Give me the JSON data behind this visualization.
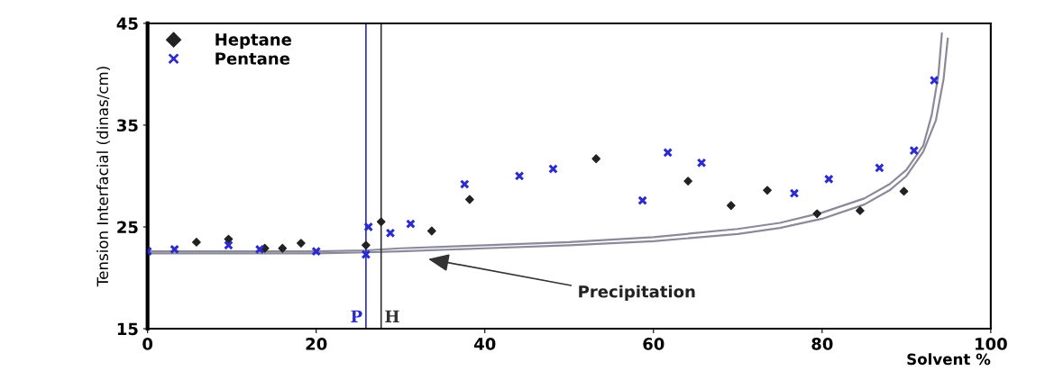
{
  "chart_data": {
    "type": "scatter",
    "xlabel": "Solvent %",
    "ylabel": "Tension Interfacial (dinas/cm)",
    "xlim": [
      0,
      100
    ],
    "ylim": [
      15,
      45
    ],
    "xticks": [
      0,
      20,
      40,
      60,
      80,
      100
    ],
    "yticks": [
      15,
      25,
      35,
      45
    ],
    "grid": false,
    "legend": "top left",
    "series": [
      {
        "name": "Heptane",
        "color": "#222222",
        "marker": "diamond",
        "x": [
          5.8,
          9.6,
          13.9,
          16,
          18.2,
          25.9,
          27.7,
          33.7,
          38.2,
          53.2,
          64.1,
          69.2,
          73.5,
          79.4,
          84.5,
          89.7
        ],
        "values": [
          23.5,
          23.8,
          22.9,
          22.9,
          23.4,
          23.2,
          25.5,
          24.6,
          27.7,
          31.7,
          29.5,
          27.1,
          28.6,
          26.3,
          26.6,
          28.5
        ]
      },
      {
        "name": "Pentane",
        "color": "#2b2bd0",
        "marker": "cross",
        "x": [
          0,
          3.2,
          9.6,
          13.3,
          20,
          25.9,
          26.2,
          28.8,
          31.2,
          37.6,
          44.1,
          48.1,
          58.7,
          61.7,
          65.7,
          76.7,
          80.8,
          86.8,
          90.9,
          93.3
        ],
        "values": [
          22.6,
          22.8,
          23.2,
          22.8,
          22.6,
          22.3,
          25,
          24.4,
          25.3,
          29.2,
          30,
          30.7,
          27.6,
          32.3,
          31.3,
          28.3,
          29.7,
          30.8,
          32.5,
          39.4
        ]
      },
      {
        "type": "line",
        "color": "#8a8a9a",
        "x": [
          0,
          20,
          26,
          30,
          40,
          50,
          60,
          70,
          75,
          80,
          85,
          88,
          90,
          92,
          93,
          93.8,
          94.2
        ],
        "values": [
          22.6,
          22.6,
          22.7,
          22.9,
          23.2,
          23.5,
          24,
          24.8,
          25.4,
          26.4,
          27.8,
          29.2,
          30.6,
          33,
          36,
          40,
          44
        ]
      },
      {
        "type": "line",
        "color": "#8a8a9a",
        "x": [
          0,
          20,
          26,
          30,
          40,
          50,
          60,
          70,
          75,
          80,
          85,
          88,
          90,
          92,
          93.5,
          94.4,
          94.9
        ],
        "values": [
          22.4,
          22.4,
          22.5,
          22.6,
          22.9,
          23.2,
          23.6,
          24.3,
          24.9,
          25.8,
          27.2,
          28.6,
          30,
          32.4,
          35.5,
          39.5,
          43.5
        ]
      }
    ],
    "ref_lines": [
      {
        "axis": "x",
        "value": 25.9,
        "label": "P",
        "color": "#2b2bd0"
      },
      {
        "axis": "x",
        "value": 27.7,
        "label": "H",
        "color": "#333333"
      }
    ],
    "annotations": [
      "Precipitation"
    ]
  }
}
